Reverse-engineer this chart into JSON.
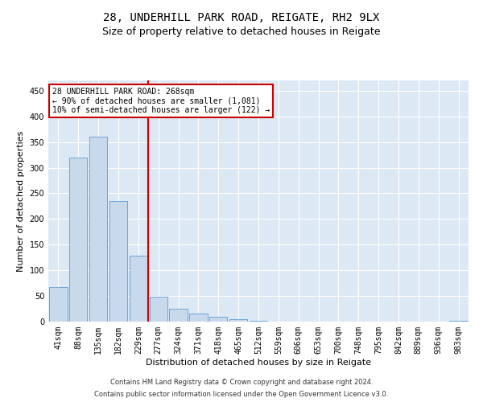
{
  "title_line1": "28, UNDERHILL PARK ROAD, REIGATE, RH2 9LX",
  "title_line2": "Size of property relative to detached houses in Reigate",
  "xlabel": "Distribution of detached houses by size in Reigate",
  "ylabel": "Number of detached properties",
  "footnote1": "Contains HM Land Registry data © Crown copyright and database right 2024.",
  "footnote2": "Contains public sector information licensed under the Open Government Licence v3.0.",
  "annotation_line1": "28 UNDERHILL PARK ROAD: 268sqm",
  "annotation_line2": "← 90% of detached houses are smaller (1,081)",
  "annotation_line3": "10% of semi-detached houses are larger (122) →",
  "bar_color": "#c9d9ec",
  "bar_edge_color": "#5b9bd5",
  "vline_color": "#cc0000",
  "vline_x_index": 5,
  "background_color": "#dce9f5",
  "categories": [
    "41sqm",
    "88sqm",
    "135sqm",
    "182sqm",
    "229sqm",
    "277sqm",
    "324sqm",
    "371sqm",
    "418sqm",
    "465sqm",
    "512sqm",
    "559sqm",
    "606sqm",
    "653sqm",
    "700sqm",
    "748sqm",
    "795sqm",
    "842sqm",
    "889sqm",
    "936sqm",
    "983sqm"
  ],
  "values": [
    68,
    320,
    360,
    235,
    128,
    48,
    25,
    15,
    10,
    4,
    1,
    0,
    0,
    0,
    0,
    0,
    0,
    0,
    0,
    0,
    1
  ],
  "ylim": [
    0,
    470
  ],
  "yticks": [
    0,
    50,
    100,
    150,
    200,
    250,
    300,
    350,
    400,
    450
  ],
  "grid_color": "#ffffff",
  "title_fontsize": 10,
  "subtitle_fontsize": 9,
  "axis_label_fontsize": 8,
  "tick_fontsize": 7,
  "footnote_fontsize": 6,
  "annotation_fontsize": 7
}
